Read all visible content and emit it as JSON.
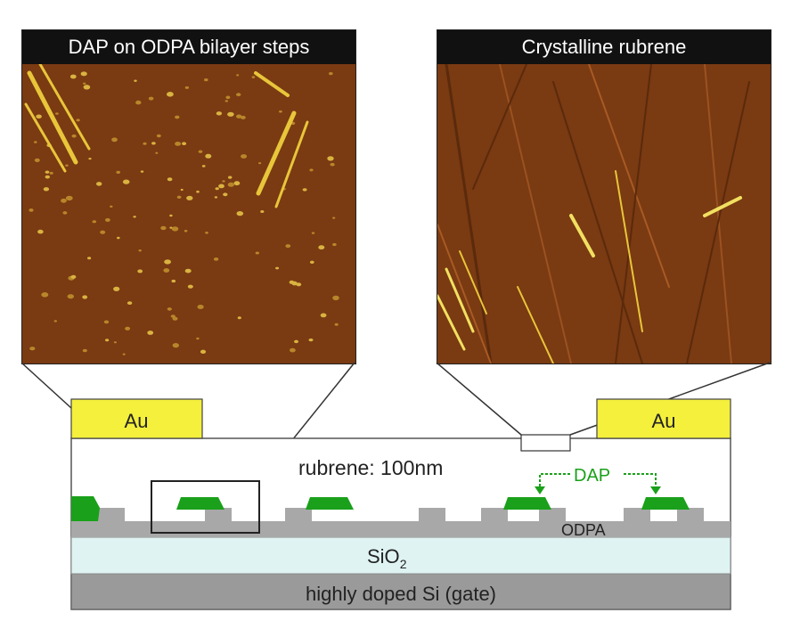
{
  "panels": {
    "left_title": "DAP on ODPA bilayer steps",
    "right_title": "Crystalline rubrene"
  },
  "device": {
    "electrode_left": "Au",
    "electrode_right": "Au",
    "rubrene_label": "rubrene: 100nm",
    "dap_label": "DAP",
    "odpa_label": "ODPA",
    "oxide_label": "SiO",
    "oxide_subscript": "2",
    "gate_label": "highly doped Si (gate)"
  },
  "colors": {
    "afm_background": "#7a3a12",
    "electrode": "#f4f03c",
    "dap": "#1aa01a",
    "odpa": "#a8a8a8",
    "oxide": "#dff3f3",
    "gate": "#9a9a9a"
  }
}
